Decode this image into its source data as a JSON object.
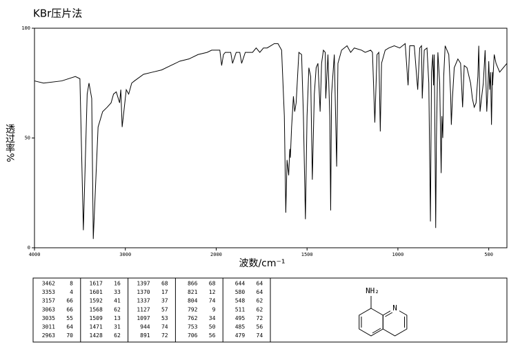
{
  "chart_data": {
    "type": "line",
    "title": "KBr压片法",
    "ylabel": "透过率%",
    "xlabel": "波数/cm⁻¹",
    "color": "#000000",
    "xlim": [
      4000,
      400
    ],
    "ylim": [
      0,
      100
    ],
    "xscale_break": 2000,
    "xticks": [
      4000,
      3000,
      2000,
      1500,
      1000,
      500
    ],
    "yticks": [
      0,
      50,
      100
    ],
    "x": [
      4000,
      3900,
      3700,
      3550,
      3500,
      3462,
      3420,
      3400,
      3370,
      3353,
      3300,
      3250,
      3200,
      3157,
      3130,
      3100,
      3063,
      3050,
      3035,
      3011,
      2990,
      2963,
      2930,
      2900,
      2800,
      2700,
      2600,
      2500,
      2400,
      2300,
      2200,
      2100,
      2050,
      2000,
      1980,
      1970,
      1960,
      1950,
      1920,
      1910,
      1890,
      1870,
      1860,
      1840,
      1800,
      1780,
      1760,
      1740,
      1720,
      1700,
      1680,
      1660,
      1640,
      1625,
      1617,
      1610,
      1601,
      1595,
      1592,
      1585,
      1575,
      1568,
      1560,
      1545,
      1530,
      1520,
      1509,
      1500,
      1490,
      1480,
      1471,
      1460,
      1450,
      1440,
      1428,
      1420,
      1410,
      1400,
      1397,
      1385,
      1375,
      1370,
      1365,
      1350,
      1337,
      1330,
      1310,
      1280,
      1260,
      1240,
      1200,
      1180,
      1150,
      1140,
      1127,
      1115,
      1105,
      1097,
      1090,
      1070,
      1050,
      1020,
      990,
      960,
      944,
      935,
      910,
      891,
      880,
      870,
      866,
      855,
      840,
      830,
      821,
      815,
      808,
      804,
      800,
      795,
      792,
      788,
      780,
      770,
      762,
      758,
      753,
      748,
      740,
      720,
      710,
      706,
      700,
      690,
      670,
      655,
      644,
      635,
      620,
      600,
      590,
      580,
      570,
      560,
      555,
      548,
      540,
      530,
      520,
      511,
      505,
      500,
      495,
      490,
      485,
      480,
      479,
      470,
      460,
      440,
      420,
      400
    ],
    "values": [
      76,
      75,
      76,
      78,
      77,
      8,
      70,
      75,
      68,
      4,
      55,
      62,
      64,
      66,
      70,
      71,
      66,
      72,
      55,
      64,
      72,
      70,
      75,
      76,
      79,
      80,
      81,
      83,
      85,
      86,
      88,
      89,
      90,
      90,
      90,
      83,
      88,
      89,
      89,
      84,
      89,
      89,
      84,
      89,
      89,
      91,
      89,
      91,
      91,
      92,
      93,
      93,
      90,
      60,
      16,
      40,
      33,
      45,
      41,
      55,
      69,
      62,
      66,
      89,
      88,
      60,
      13,
      60,
      82,
      78,
      31,
      70,
      82,
      84,
      62,
      84,
      90,
      89,
      68,
      88,
      60,
      17,
      70,
      88,
      37,
      84,
      90,
      92,
      89,
      91,
      90,
      89,
      90,
      89,
      57,
      88,
      89,
      53,
      84,
      90,
      91,
      92,
      91,
      93,
      74,
      92,
      92,
      72,
      91,
      92,
      68,
      90,
      91,
      75,
      12,
      80,
      88,
      74,
      88,
      40,
      9,
      50,
      89,
      75,
      34,
      60,
      50,
      78,
      92,
      88,
      70,
      56,
      68,
      82,
      86,
      84,
      64,
      83,
      82,
      75,
      68,
      64,
      66,
      78,
      92,
      62,
      68,
      75,
      90,
      62,
      72,
      85,
      72,
      80,
      56,
      80,
      74,
      88,
      84,
      80,
      82,
      84
    ]
  },
  "peak_table": {
    "columns": [
      [
        [
          3462,
          8
        ],
        [
          3353,
          4
        ],
        [
          3157,
          66
        ],
        [
          3063,
          66
        ],
        [
          3035,
          55
        ],
        [
          3011,
          64
        ],
        [
          2963,
          70
        ]
      ],
      [
        [
          1617,
          16
        ],
        [
          1601,
          33
        ],
        [
          1592,
          41
        ],
        [
          1568,
          62
        ],
        [
          1509,
          13
        ],
        [
          1471,
          31
        ],
        [
          1428,
          62
        ]
      ],
      [
        [
          1397,
          68
        ],
        [
          1370,
          17
        ],
        [
          1337,
          37
        ],
        [
          1127,
          57
        ],
        [
          1097,
          53
        ],
        [
          944,
          74
        ],
        [
          891,
          72
        ]
      ],
      [
        [
          866,
          68
        ],
        [
          821,
          12
        ],
        [
          804,
          74
        ],
        [
          792,
          9
        ],
        [
          762,
          34
        ],
        [
          753,
          50
        ],
        [
          706,
          56
        ]
      ],
      [
        [
          644,
          64
        ],
        [
          580,
          64
        ],
        [
          548,
          62
        ],
        [
          511,
          62
        ],
        [
          495,
          72
        ],
        [
          485,
          56
        ],
        [
          479,
          74
        ]
      ]
    ]
  },
  "structure": {
    "labels": [
      "NH₂",
      "N"
    ]
  }
}
